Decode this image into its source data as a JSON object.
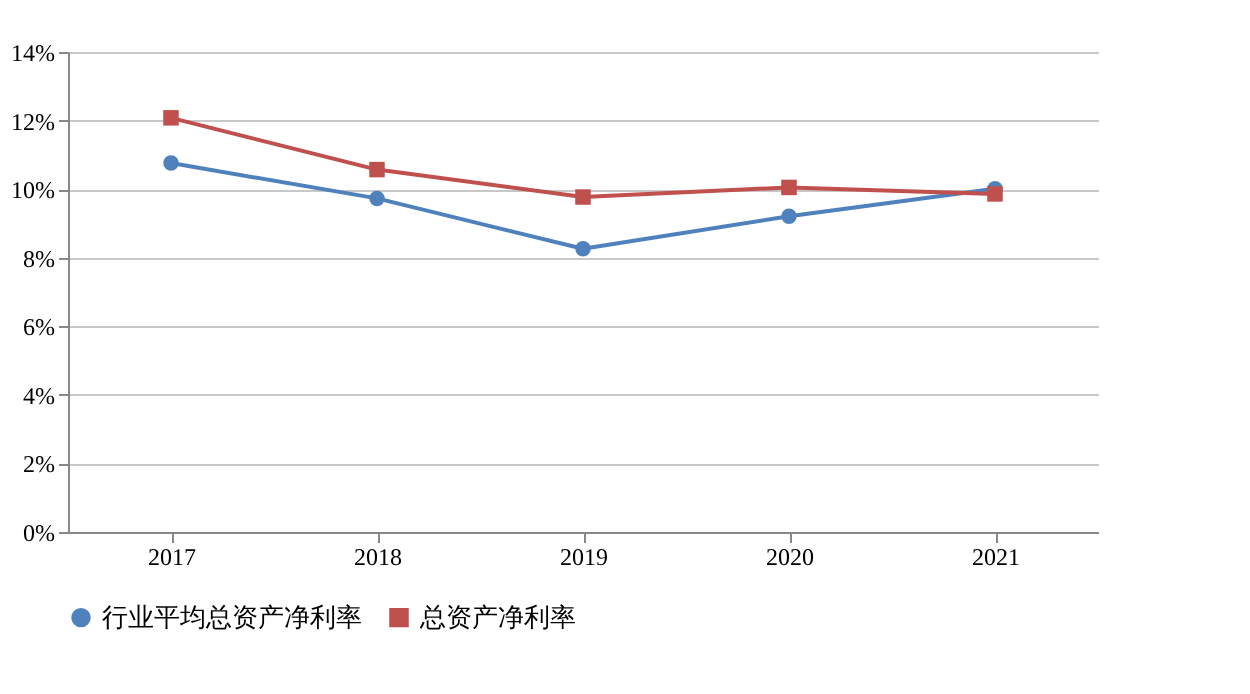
{
  "chart_data": {
    "type": "line",
    "categories": [
      "2017",
      "2018",
      "2019",
      "2020",
      "2021"
    ],
    "series": [
      {
        "name": "行业平均总资产净利率",
        "color": "#4f81bd",
        "marker": "circle",
        "values": [
          10.76,
          9.73,
          8.26,
          9.21,
          10.01
        ]
      },
      {
        "name": "总资产净利率",
        "color": "#c0504d",
        "marker": "square",
        "values": [
          12.08,
          10.57,
          9.77,
          10.05,
          9.86
        ]
      }
    ],
    "ylim": [
      0,
      14
    ],
    "yticks": [
      {
        "value": 0,
        "label": "0%"
      },
      {
        "value": 2,
        "label": "2%"
      },
      {
        "value": 4,
        "label": "4%"
      },
      {
        "value": 6,
        "label": "6%"
      },
      {
        "value": 8,
        "label": "8%"
      },
      {
        "value": 10,
        "label": "10%"
      },
      {
        "value": 12,
        "label": "12%"
      },
      {
        "value": 14,
        "label": "14%"
      }
    ],
    "grid": "y",
    "legend": "bottom",
    "line_style": "solid"
  }
}
